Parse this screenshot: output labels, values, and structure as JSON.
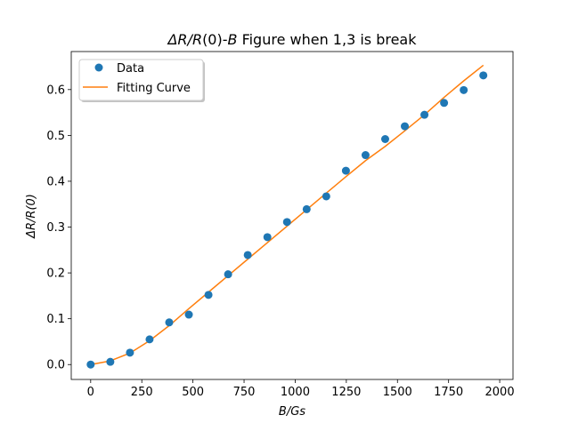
{
  "chart_data": {
    "type": "scatter",
    "title": "ΔR/R(0)-B Figure when 1,3 is break",
    "title_parts": {
      "italic_1": "ΔR/R",
      "plain_1": "(0)-",
      "italic_2": "B",
      "plain_2": " Figure when 1,3 is break"
    },
    "xlabel": "B/Gs",
    "ylabel": "ΔR/R(0)",
    "xlim": [
      -95,
      2065
    ],
    "ylim": [
      -0.0325,
      0.683
    ],
    "xticks": [
      0,
      250,
      500,
      750,
      1000,
      1250,
      1500,
      1750,
      2000
    ],
    "yticks": [
      0.0,
      0.1,
      0.2,
      0.3,
      0.4,
      0.5,
      0.6
    ],
    "xtick_labels": [
      "0",
      "250",
      "500",
      "750",
      "1000",
      "1250",
      "1500",
      "1750",
      "2000"
    ],
    "ytick_labels": [
      "0.0",
      "0.1",
      "0.2",
      "0.3",
      "0.4",
      "0.5",
      "0.6"
    ],
    "grid": false,
    "legend_position": "upper-left",
    "series": [
      {
        "name": "Data",
        "kind": "scatter",
        "color": "#1f77b4",
        "x": [
          0,
          96,
          192,
          288,
          384,
          480,
          576,
          672,
          768,
          864,
          960,
          1056,
          1152,
          1248,
          1344,
          1440,
          1536,
          1632,
          1728,
          1824,
          1920
        ],
        "y": [
          0.0,
          0.006,
          0.026,
          0.055,
          0.092,
          0.109,
          0.152,
          0.197,
          0.239,
          0.278,
          0.311,
          0.339,
          0.367,
          0.423,
          0.457,
          0.492,
          0.52,
          0.545,
          0.571,
          0.599,
          0.631
        ]
      },
      {
        "name": "Fitting Curve",
        "kind": "line",
        "color": "#ff7f0e",
        "x": [
          0,
          96,
          192,
          288,
          384,
          480,
          576,
          672,
          768,
          864,
          960,
          1056,
          1152,
          1248,
          1344,
          1440,
          1536,
          1632,
          1728,
          1824,
          1920
        ],
        "y": [
          0.0,
          0.008,
          0.025,
          0.052,
          0.085,
          0.122,
          0.158,
          0.194,
          0.23,
          0.266,
          0.302,
          0.338,
          0.374,
          0.41,
          0.445,
          0.476,
          0.51,
          0.545,
          0.583,
          0.619,
          0.653
        ]
      }
    ]
  }
}
